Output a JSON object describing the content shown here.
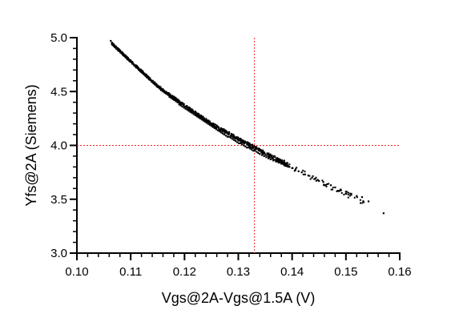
{
  "chart_data": {
    "type": "scatter",
    "title": "",
    "xlabel": "Vgs@2A-Vgs@1.5A (V)",
    "ylabel": "Yfs@2A (Siemens)",
    "xlim": [
      0.1,
      0.16
    ],
    "ylim": [
      3.0,
      5.0
    ],
    "x_ticks": [
      0.1,
      0.11,
      0.12,
      0.13,
      0.14,
      0.15,
      0.16
    ],
    "x_tick_labels": [
      "0.10",
      "0.11",
      "0.12",
      "0.13",
      "0.14",
      "0.15",
      "0.16"
    ],
    "y_ticks": [
      3.0,
      3.5,
      4.0,
      4.5,
      5.0
    ],
    "y_tick_labels": [
      "3.0",
      "3.5",
      "4.0",
      "4.5",
      "5.0"
    ],
    "x_minor_step": 0.002,
    "y_minor_step": 0.1,
    "grid": false,
    "reference_lines": {
      "x": 0.133,
      "y": 4.0,
      "color": "#e8262a",
      "style": "dotted"
    },
    "point_color": "#000000",
    "trend": {
      "description_points_x": [
        0.106,
        0.11,
        0.115,
        0.12,
        0.125,
        0.13,
        0.133,
        0.136,
        0.14,
        0.145,
        0.15,
        0.153,
        0.157
      ],
      "description_points_y": [
        4.97,
        4.78,
        4.55,
        4.37,
        4.2,
        4.06,
        3.98,
        3.9,
        3.8,
        3.67,
        3.55,
        3.47,
        3.37
      ]
    },
    "series": [
      {
        "values_x": [
          0.1063,
          0.1068,
          0.1072,
          0.1075,
          0.1078,
          0.1081,
          0.1084,
          0.1088,
          0.1091,
          0.1094,
          0.1097,
          0.11,
          0.1103,
          0.1106,
          0.1109,
          0.1112,
          0.1115,
          0.1118,
          0.1121,
          0.1124,
          0.1127,
          0.113,
          0.1133,
          0.1136,
          0.1139,
          0.1142,
          0.1145,
          0.1148,
          0.1151,
          0.1154,
          0.1157,
          0.116,
          0.1163,
          0.1166,
          0.1169,
          0.1172,
          0.1175,
          0.1178,
          0.1181,
          0.1184,
          0.1187,
          0.119,
          0.1193,
          0.1196,
          0.1199,
          0.1202,
          0.1205,
          0.1208,
          0.1211,
          0.1214,
          0.1217,
          0.122,
          0.1223,
          0.1226,
          0.1229,
          0.1232,
          0.1235,
          0.1238,
          0.1241,
          0.1244,
          0.1247,
          0.125,
          0.1253,
          0.1256,
          0.1259,
          0.1262,
          0.1265,
          0.1268,
          0.1271,
          0.1274,
          0.1277,
          0.128,
          0.1283,
          0.1286,
          0.1289,
          0.1292,
          0.1295,
          0.1298,
          0.1301,
          0.1304,
          0.1307,
          0.131,
          0.1313,
          0.1316,
          0.1319,
          0.1322,
          0.1325,
          0.1328,
          0.1331,
          0.1334,
          0.1337,
          0.134,
          0.1344,
          0.1348,
          0.1352,
          0.1356,
          0.136,
          0.1365,
          0.137,
          0.1375,
          0.138,
          0.1385,
          0.139,
          0.1395,
          0.14,
          0.1406,
          0.1412,
          0.1418,
          0.1424,
          0.143,
          0.1437,
          0.1443,
          0.145,
          0.1458,
          0.1465,
          0.1472,
          0.148,
          0.149,
          0.15,
          0.151,
          0.152,
          0.153,
          0.1542,
          0.157
        ],
        "values_y": [
          4.97,
          4.93,
          4.92,
          4.9,
          4.89,
          4.87,
          4.86,
          4.84,
          4.82,
          4.81,
          4.79,
          4.78,
          4.76,
          4.75,
          4.73,
          4.72,
          4.7,
          4.69,
          4.68,
          4.66,
          4.65,
          4.63,
          4.62,
          4.61,
          4.59,
          4.58,
          4.57,
          4.55,
          4.54,
          4.53,
          4.51,
          4.5,
          4.49,
          4.48,
          4.47,
          4.45,
          4.44,
          4.43,
          4.42,
          4.41,
          4.4,
          4.38,
          4.37,
          4.36,
          4.35,
          4.34,
          4.33,
          4.32,
          4.31,
          4.3,
          4.29,
          4.28,
          4.27,
          4.26,
          4.25,
          4.24,
          4.23,
          4.22,
          4.21,
          4.2,
          4.19,
          4.18,
          4.17,
          4.16,
          4.15,
          4.14,
          4.13,
          4.12,
          4.11,
          4.1,
          4.09,
          4.08,
          4.08,
          4.07,
          4.06,
          4.05,
          4.04,
          4.03,
          4.02,
          4.02,
          4.01,
          4.0,
          3.99,
          3.98,
          3.98,
          3.97,
          3.96,
          3.95,
          3.95,
          3.94,
          3.93,
          3.92,
          3.91,
          3.9,
          3.89,
          3.88,
          3.87,
          3.86,
          3.85,
          3.84,
          3.83,
          3.82,
          3.81,
          3.8,
          3.79,
          3.77,
          3.76,
          3.75,
          3.73,
          3.72,
          3.7,
          3.69,
          3.67,
          3.66,
          3.64,
          3.63,
          3.61,
          3.59,
          3.57,
          3.55,
          3.53,
          3.52,
          3.48,
          3.37
        ]
      }
    ]
  }
}
